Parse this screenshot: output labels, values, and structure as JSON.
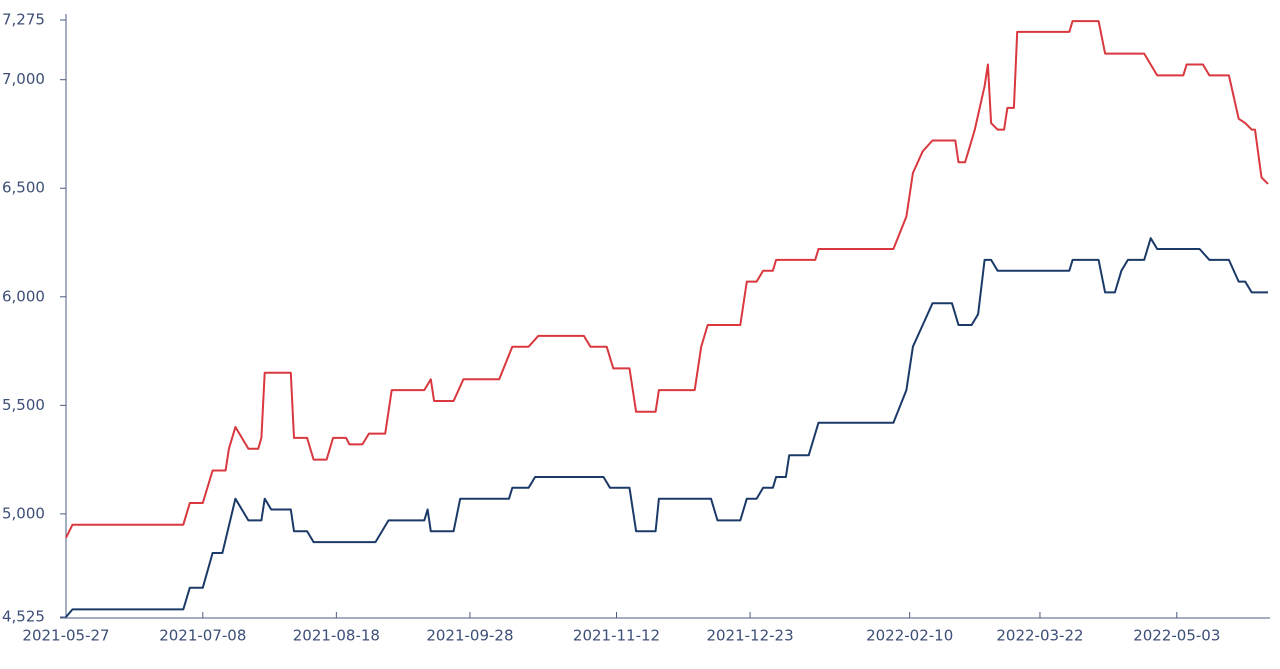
{
  "chart_data": {
    "type": "line",
    "xlim": [
      "2021-05-27",
      "2022-05-31"
    ],
    "xticks": [
      "2021-05-27",
      "2021-07-08",
      "2021-08-18",
      "2021-09-28",
      "2021-11-12",
      "2021-12-23",
      "2022-02-10",
      "2022-03-22",
      "2022-05-03"
    ],
    "ylim": [
      4525,
      7275
    ],
    "yticks": [
      {
        "value": 4525,
        "label": "4,525"
      },
      {
        "value": 5000,
        "label": "5,000"
      },
      {
        "value": 5500,
        "label": "5,500"
      },
      {
        "value": 6000,
        "label": "6,000"
      },
      {
        "value": 6500,
        "label": "6,500"
      },
      {
        "value": 7000,
        "label": "7,000"
      },
      {
        "value": 7275,
        "label": "7,275"
      }
    ],
    "series": [
      {
        "color": "#d8383e",
        "x": [
          "2021-05-27",
          "2021-05-29",
          "2021-07-02",
          "2021-07-04",
          "2021-07-08",
          "2021-07-11",
          "2021-07-15",
          "2021-07-16",
          "2021-07-18",
          "2021-07-22",
          "2021-07-25",
          "2021-07-26",
          "2021-07-27",
          "2021-08-04",
          "2021-08-05",
          "2021-08-09",
          "2021-08-11",
          "2021-08-15",
          "2021-08-17",
          "2021-08-21",
          "2021-08-22",
          "2021-08-26",
          "2021-08-28",
          "2021-09-02",
          "2021-09-04",
          "2021-09-14",
          "2021-09-16",
          "2021-09-17",
          "2021-09-23",
          "2021-09-26",
          "2021-10-07",
          "2021-10-11",
          "2021-10-16",
          "2021-10-19",
          "2021-11-02",
          "2021-11-04",
          "2021-11-09",
          "2021-11-11",
          "2021-11-16",
          "2021-11-18",
          "2021-11-24",
          "2021-11-25",
          "2021-12-06",
          "2021-12-08",
          "2021-12-10",
          "2021-12-20",
          "2021-12-22",
          "2021-12-25",
          "2021-12-27",
          "2021-12-30",
          "2021-12-31",
          "2022-01-12",
          "2022-01-13",
          "2022-02-05",
          "2022-02-09",
          "2022-02-11",
          "2022-02-14",
          "2022-02-17",
          "2022-02-24",
          "2022-02-25",
          "2022-02-27",
          "2022-03-01",
          "2022-03-02",
          "2022-03-05",
          "2022-03-06",
          "2022-03-07",
          "2022-03-09",
          "2022-03-11",
          "2022-03-12",
          "2022-03-14",
          "2022-03-15",
          "2022-03-31",
          "2022-04-01",
          "2022-04-09",
          "2022-04-11",
          "2022-04-23",
          "2022-04-25",
          "2022-04-27",
          "2022-05-05",
          "2022-05-06",
          "2022-05-11",
          "2022-05-13",
          "2022-05-19",
          "2022-05-22",
          "2022-05-24",
          "2022-05-26",
          "2022-05-27",
          "2022-05-29",
          "2022-05-31"
        ],
        "values": [
          4890,
          4950,
          4950,
          5050,
          5050,
          5200,
          5200,
          5300,
          5400,
          5300,
          5300,
          5350,
          5650,
          5650,
          5350,
          5350,
          5250,
          5250,
          5350,
          5350,
          5320,
          5320,
          5370,
          5370,
          5570,
          5570,
          5620,
          5520,
          5520,
          5620,
          5620,
          5770,
          5770,
          5820,
          5820,
          5770,
          5770,
          5670,
          5670,
          5470,
          5470,
          5570,
          5570,
          5770,
          5870,
          5870,
          6070,
          6070,
          6120,
          6120,
          6170,
          6170,
          6220,
          6220,
          6370,
          6570,
          6670,
          6720,
          6720,
          6620,
          6620,
          6720,
          6770,
          6970,
          7070,
          6800,
          6770,
          6770,
          6870,
          6870,
          7220,
          7220,
          7270,
          7270,
          7120,
          7120,
          7070,
          7020,
          7020,
          7070,
          7070,
          7020,
          7020,
          6820,
          6800,
          6770,
          6770,
          6550,
          6520
        ]
      },
      {
        "color": "#1b3a68",
        "x": [
          "2021-05-27",
          "2021-05-29",
          "2021-07-02",
          "2021-07-04",
          "2021-07-08",
          "2021-07-11",
          "2021-07-14",
          "2021-07-18",
          "2021-07-22",
          "2021-07-26",
          "2021-07-27",
          "2021-07-29",
          "2021-08-04",
          "2021-08-05",
          "2021-08-09",
          "2021-08-11",
          "2021-08-30",
          "2021-09-01",
          "2021-09-03",
          "2021-09-14",
          "2021-09-15",
          "2021-09-16",
          "2021-09-23",
          "2021-09-25",
          "2021-10-10",
          "2021-10-11",
          "2021-10-16",
          "2021-10-18",
          "2021-11-08",
          "2021-11-10",
          "2021-11-16",
          "2021-11-18",
          "2021-11-24",
          "2021-11-25",
          "2021-12-11",
          "2021-12-13",
          "2021-12-20",
          "2021-12-22",
          "2021-12-25",
          "2021-12-27",
          "2021-12-30",
          "2021-12-31",
          "2022-01-03",
          "2022-01-04",
          "2022-01-10",
          "2022-01-13",
          "2022-02-05",
          "2022-02-09",
          "2022-02-11",
          "2022-02-14",
          "2022-02-17",
          "2022-02-23",
          "2022-02-25",
          "2022-03-01",
          "2022-03-03",
          "2022-03-05",
          "2022-03-07",
          "2022-03-09",
          "2022-03-31",
          "2022-04-01",
          "2022-04-09",
          "2022-04-11",
          "2022-04-14",
          "2022-04-16",
          "2022-04-18",
          "2022-04-23",
          "2022-04-25",
          "2022-04-27",
          "2022-05-10",
          "2022-05-13",
          "2022-05-19",
          "2022-05-22",
          "2022-05-24",
          "2022-05-26",
          "2022-05-31"
        ],
        "values": [
          4525,
          4560,
          4560,
          4660,
          4660,
          4820,
          4820,
          5070,
          4970,
          4970,
          5070,
          5020,
          5020,
          4920,
          4920,
          4870,
          4870,
          4920,
          4970,
          4970,
          5020,
          4920,
          4920,
          5070,
          5070,
          5120,
          5120,
          5170,
          5170,
          5120,
          5120,
          4920,
          4920,
          5070,
          5070,
          4970,
          4970,
          5070,
          5070,
          5120,
          5120,
          5170,
          5170,
          5270,
          5270,
          5420,
          5420,
          5570,
          5770,
          5870,
          5970,
          5970,
          5870,
          5870,
          5920,
          6170,
          6170,
          6120,
          6120,
          6170,
          6170,
          6020,
          6020,
          6120,
          6170,
          6170,
          6270,
          6220,
          6220,
          6170,
          6170,
          6070,
          6070,
          6020,
          6020
        ]
      }
    ]
  }
}
